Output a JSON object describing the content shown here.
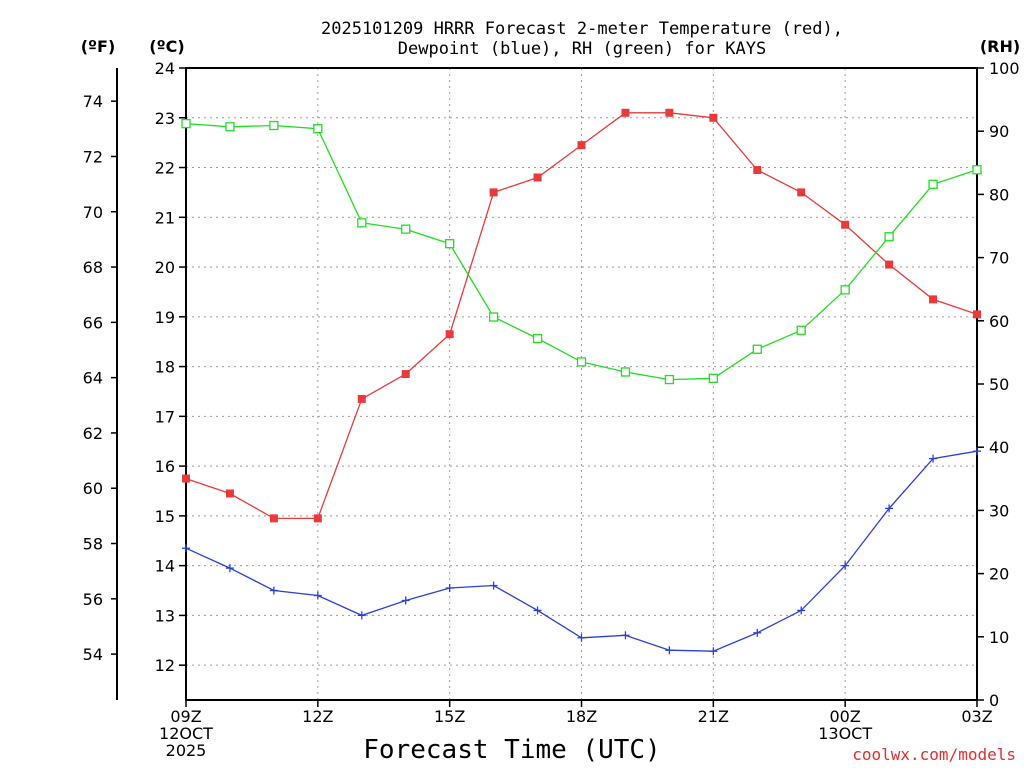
{
  "chart_data": {
    "type": "line",
    "title": [
      "2025101209 HRRR Forecast 2-meter Temperature (red),",
      "Dewpoint (blue), RH (green) for KAYS"
    ],
    "xlabel": "Forecast Time (UTC)",
    "x": [
      "09Z",
      "10Z",
      "11Z",
      "12Z",
      "13Z",
      "14Z",
      "15Z",
      "16Z",
      "17Z",
      "18Z",
      "19Z",
      "20Z",
      "21Z",
      "22Z",
      "23Z",
      "00Z",
      "01Z",
      "02Z",
      "03Z"
    ],
    "x_tick_labels": [
      {
        "index": 0,
        "lines": [
          "09Z",
          "12OCT",
          "2025"
        ]
      },
      {
        "index": 3,
        "lines": [
          "12Z"
        ]
      },
      {
        "index": 6,
        "lines": [
          "15Z"
        ]
      },
      {
        "index": 9,
        "lines": [
          "18Z"
        ]
      },
      {
        "index": 12,
        "lines": [
          "21Z"
        ]
      },
      {
        "index": 15,
        "lines": [
          "00Z",
          "13OCT"
        ]
      },
      {
        "index": 18,
        "lines": [
          "03Z"
        ]
      }
    ],
    "left_axis_c": {
      "unit": "(ºC)",
      "ylim": [
        11.3,
        24.0
      ],
      "ticks": [
        12,
        13,
        14,
        15,
        16,
        17,
        18,
        19,
        20,
        21,
        22,
        23,
        24
      ]
    },
    "left_axis_f": {
      "unit": "(ºF)",
      "ticks": [
        54,
        56,
        58,
        60,
        62,
        64,
        66,
        68,
        70,
        72,
        74
      ]
    },
    "right_axis_rh": {
      "unit": "(RH)",
      "ylim": [
        0,
        100
      ],
      "ticks": [
        0,
        10,
        20,
        30,
        40,
        50,
        60,
        70,
        80,
        90,
        100
      ]
    },
    "series": [
      {
        "name": "Temperature",
        "axis": "C",
        "color": "#e83a3a",
        "marker": "filled-square",
        "values": [
          15.75,
          15.45,
          14.95,
          14.95,
          17.35,
          17.85,
          18.65,
          21.5,
          21.8,
          22.45,
          23.1,
          23.1,
          23.0,
          21.95,
          21.5,
          20.85,
          20.05,
          19.35,
          19.05
        ]
      },
      {
        "name": "Dewpoint",
        "axis": "C",
        "color": "#2a3ee0",
        "marker": "plus",
        "values": [
          14.35,
          13.95,
          13.5,
          13.4,
          13.0,
          13.3,
          13.55,
          13.6,
          13.1,
          12.55,
          12.6,
          12.3,
          12.28,
          12.65,
          13.1,
          14.0,
          15.15,
          16.15,
          16.3
        ]
      },
      {
        "name": "RH",
        "axis": "RH",
        "color": "#22dd22",
        "marker": "open-square",
        "values": [
          91.2,
          90.7,
          90.9,
          90.4,
          75.5,
          74.5,
          72.2,
          60.6,
          57.2,
          53.5,
          51.9,
          50.7,
          50.9,
          55.5,
          58.5,
          64.9,
          73.3,
          81.6,
          83.9
        ]
      }
    ]
  },
  "credit": "coolwx.com/models",
  "colors": {
    "grid": "#9a9a9a",
    "axis": "#000000"
  }
}
